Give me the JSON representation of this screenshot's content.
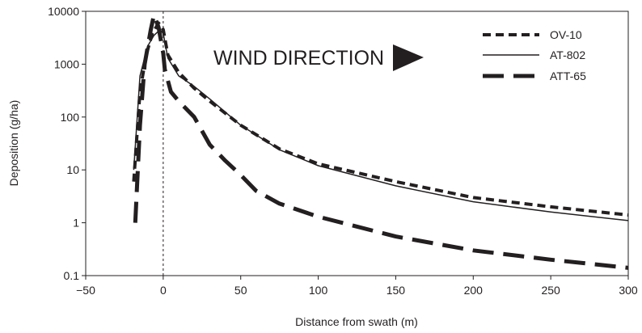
{
  "chart_data": {
    "type": "line",
    "title": "",
    "xlabel": "Distance from swath (m)",
    "ylabel": "Deposition (g/ha)",
    "xlim": [
      -50,
      300
    ],
    "ylim": [
      0.1,
      10000
    ],
    "y_scale": "log",
    "x_ticks": [
      -50,
      0,
      50,
      100,
      150,
      200,
      250,
      300
    ],
    "x_tick_labels": [
      "−50",
      "0",
      "50",
      "100",
      "150",
      "200",
      "250",
      "300"
    ],
    "y_ticks": [
      0.1,
      1,
      10,
      100,
      1000,
      10000
    ],
    "y_tick_labels": [
      "0.1",
      "1",
      "10",
      "100",
      "1000",
      "10000"
    ],
    "grid": false,
    "legend_position": "top-right",
    "annotation": "WIND DIRECTION",
    "reference_line_x": 0,
    "series": [
      {
        "name": "OV-10",
        "line_style": "short-dash",
        "x": [
          -19,
          -15,
          -11,
          -7,
          -3,
          0,
          3,
          10,
          20,
          30,
          50,
          75,
          100,
          150,
          200,
          250,
          300
        ],
        "y": [
          6,
          300,
          1500,
          3800,
          6000,
          4500,
          1500,
          700,
          350,
          200,
          70,
          25,
          13,
          6,
          3,
          2,
          1.4
        ]
      },
      {
        "name": "AT-802",
        "line_style": "solid",
        "x": [
          -19,
          -15,
          -10,
          -6,
          -2,
          0,
          3,
          10,
          20,
          30,
          50,
          75,
          100,
          150,
          200,
          250,
          300
        ],
        "y": [
          10,
          600,
          2200,
          3500,
          4500,
          3800,
          1300,
          600,
          380,
          220,
          70,
          24,
          12,
          5,
          2.5,
          1.6,
          1.1
        ]
      },
      {
        "name": "ATT-65",
        "line_style": "long-dash",
        "x": [
          -18,
          -15,
          -12,
          -8,
          -6,
          -3,
          0,
          1,
          5,
          10,
          20,
          30,
          40,
          50,
          60,
          75,
          100,
          150,
          200,
          250,
          300
        ],
        "y": [
          1,
          70,
          1000,
          4500,
          8500,
          5000,
          1600,
          800,
          300,
          200,
          100,
          30,
          15,
          8,
          4,
          2.3,
          1.3,
          0.55,
          0.3,
          0.2,
          0.14
        ]
      }
    ]
  }
}
